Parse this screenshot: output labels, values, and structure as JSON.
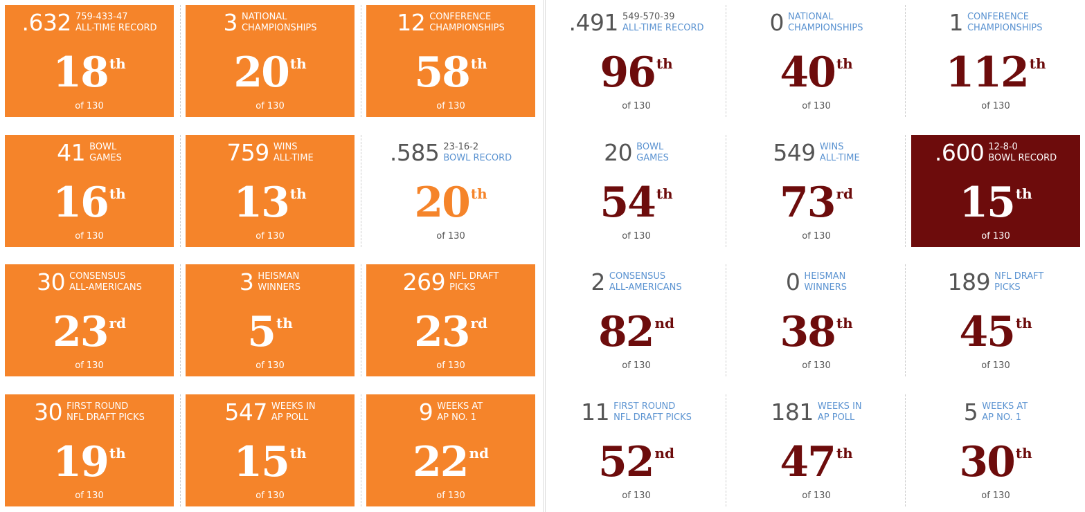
{
  "teams": [
    {
      "color": "#f5842a",
      "cards": [
        {
          "stat": ".632",
          "record": "759-433-47",
          "label": [
            "ALL-TIME RECORD"
          ],
          "rank": 18,
          "suffix": "th",
          "out_of": "of 130",
          "filled": true
        },
        {
          "stat": "3",
          "label": [
            "NATIONAL",
            "CHAMPIONSHIPS"
          ],
          "rank": 20,
          "suffix": "th",
          "out_of": "of 130",
          "filled": true
        },
        {
          "stat": "12",
          "label": [
            "CONFERENCE",
            "CHAMPIONSHIPS"
          ],
          "rank": 58,
          "suffix": "th",
          "out_of": "of 130",
          "filled": true
        },
        {
          "stat": "41",
          "label": [
            "BOWL",
            "GAMES"
          ],
          "rank": 16,
          "suffix": "th",
          "out_of": "of 130",
          "filled": true
        },
        {
          "stat": "759",
          "label": [
            "WINS",
            "ALL-TIME"
          ],
          "rank": 13,
          "suffix": "th",
          "out_of": "of 130",
          "filled": true
        },
        {
          "stat": ".585",
          "record": "23-16-2",
          "label": [
            "BOWL RECORD"
          ],
          "rank": 20,
          "suffix": "th",
          "out_of": "of 130",
          "filled": false
        },
        {
          "stat": "30",
          "label": [
            "CONSENSUS",
            "ALL-AMERICANS"
          ],
          "rank": 23,
          "suffix": "rd",
          "out_of": "of 130",
          "filled": true
        },
        {
          "stat": "3",
          "label": [
            "HEISMAN",
            "WINNERS"
          ],
          "rank": 5,
          "suffix": "th",
          "out_of": "of 130",
          "filled": true
        },
        {
          "stat": "269",
          "label": [
            "NFL DRAFT",
            "PICKS"
          ],
          "rank": 23,
          "suffix": "rd",
          "out_of": "of 130",
          "filled": true
        },
        {
          "stat": "30",
          "label": [
            "FIRST ROUND",
            "NFL DRAFT PICKS"
          ],
          "rank": 19,
          "suffix": "th",
          "out_of": "of 130",
          "filled": true
        },
        {
          "stat": "547",
          "label": [
            "WEEKS IN",
            "AP POLL"
          ],
          "rank": 15,
          "suffix": "th",
          "out_of": "of 130",
          "filled": true
        },
        {
          "stat": "9",
          "label": [
            "WEEKS AT",
            "AP NO. 1"
          ],
          "rank": 22,
          "suffix": "nd",
          "out_of": "of 130",
          "filled": true
        }
      ]
    },
    {
      "color": "#6d0c0c",
      "cards": [
        {
          "stat": ".491",
          "record": "549-570-39",
          "label": [
            "ALL-TIME RECORD"
          ],
          "rank": 96,
          "suffix": "th",
          "out_of": "of 130",
          "filled": false
        },
        {
          "stat": "0",
          "label": [
            "NATIONAL",
            "CHAMPIONSHIPS"
          ],
          "rank": 40,
          "suffix": "th",
          "out_of": "of 130",
          "filled": false
        },
        {
          "stat": "1",
          "label": [
            "CONFERENCE",
            "CHAMPIONSHIPS"
          ],
          "rank": 112,
          "suffix": "th",
          "out_of": "of 130",
          "filled": false
        },
        {
          "stat": "20",
          "label": [
            "BOWL",
            "GAMES"
          ],
          "rank": 54,
          "suffix": "th",
          "out_of": "of 130",
          "filled": false
        },
        {
          "stat": "549",
          "label": [
            "WINS",
            "ALL-TIME"
          ],
          "rank": 73,
          "suffix": "rd",
          "out_of": "of 130",
          "filled": false
        },
        {
          "stat": ".600",
          "record": "12-8-0",
          "label": [
            "BOWL RECORD"
          ],
          "rank": 15,
          "suffix": "th",
          "out_of": "of 130",
          "filled": true
        },
        {
          "stat": "2",
          "label": [
            "CONSENSUS",
            "ALL-AMERICANS"
          ],
          "rank": 82,
          "suffix": "nd",
          "out_of": "of 130",
          "filled": false
        },
        {
          "stat": "0",
          "label": [
            "HEISMAN",
            "WINNERS"
          ],
          "rank": 38,
          "suffix": "th",
          "out_of": "of 130",
          "filled": false
        },
        {
          "stat": "189",
          "label": [
            "NFL DRAFT",
            "PICKS"
          ],
          "rank": 45,
          "suffix": "th",
          "out_of": "of 130",
          "filled": false
        },
        {
          "stat": "11",
          "label": [
            "FIRST ROUND",
            "NFL DRAFT PICKS"
          ],
          "rank": 52,
          "suffix": "nd",
          "out_of": "of 130",
          "filled": false
        },
        {
          "stat": "181",
          "label": [
            "WEEKS IN",
            "AP POLL"
          ],
          "rank": 47,
          "suffix": "th",
          "out_of": "of 130",
          "filled": false
        },
        {
          "stat": "5",
          "label": [
            "WEEKS AT",
            "AP NO. 1"
          ],
          "rank": 30,
          "suffix": "th",
          "out_of": "of 130",
          "filled": false
        }
      ]
    }
  ]
}
